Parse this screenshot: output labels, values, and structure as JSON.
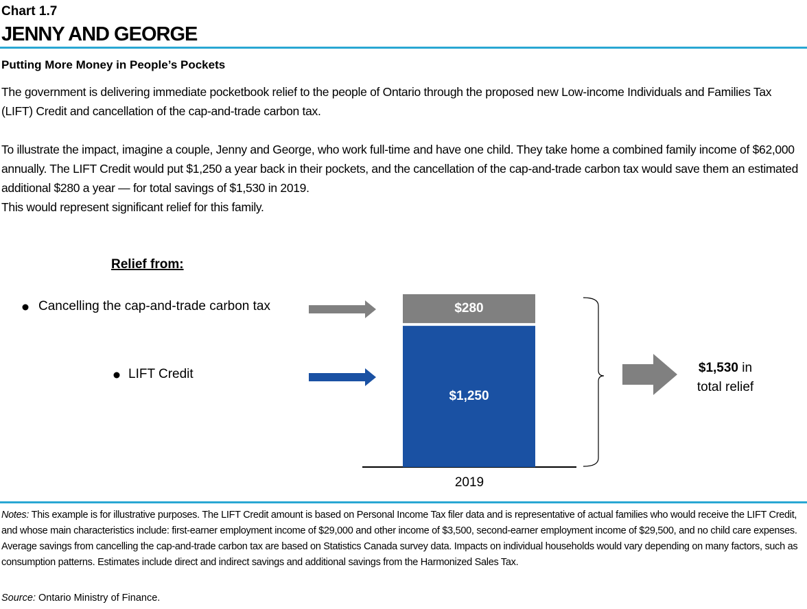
{
  "header": {
    "chart_number": "Chart 1.7",
    "title": "JENNY AND GEORGE"
  },
  "subtitle": "Putting More Money in People’s Pockets",
  "paragraphs": [
    "The government is delivering immediate pocketbook relief to the people of Ontario through the proposed new Low-income Individuals and Families Tax (LIFT) Credit and cancellation of the cap-and-trade carbon tax.",
    "To illustrate the impact, imagine a couple, Jenny and George, who work full-time and have one child. They take home a combined family income of $62,000 annually. The LIFT Credit would put $1,250 a year back in their pockets, and the cancellation of the cap-and-trade carbon tax would save them an estimated additional $280 a year — for total savings of $1,530 in 2019.",
    "This would represent significant relief for this family."
  ],
  "chart_data": {
    "type": "stacked_bar",
    "legend_title": "Relief from:",
    "categories": [
      "2019"
    ],
    "series": [
      {
        "name": "LIFT Credit",
        "color": "#1a51a3",
        "values": [
          1250
        ],
        "value_labels": [
          "$1,250"
        ]
      },
      {
        "name": "Cancelling the cap-and-trade carbon tax",
        "color": "#808080",
        "values": [
          280
        ],
        "value_labels": [
          "$280"
        ]
      }
    ],
    "total": 1530,
    "total_label": "$1,530",
    "total_text": "in total relief"
  },
  "notes": {
    "label": "Notes:",
    "text": "This example is for illustrative purposes. The LIFT Credit amount is based on Personal Income Tax filer data and is representative of actual families who would receive the LIFT Credit, and whose main characteristics include: first-earner employment income of $29,000 and other income of $3,500, second-earner employment income of $29,500, and no child care expenses. Average savings from cancelling the cap-and-trade carbon tax are based on Statistics Canada survey data. Impacts on individual households would vary depending on many factors, such as consumption patterns. Estimates include direct and indirect savings and additional savings from the Harmonized Sales Tax."
  },
  "source": {
    "label": "Source:",
    "text": "Ontario Ministry of Finance."
  }
}
